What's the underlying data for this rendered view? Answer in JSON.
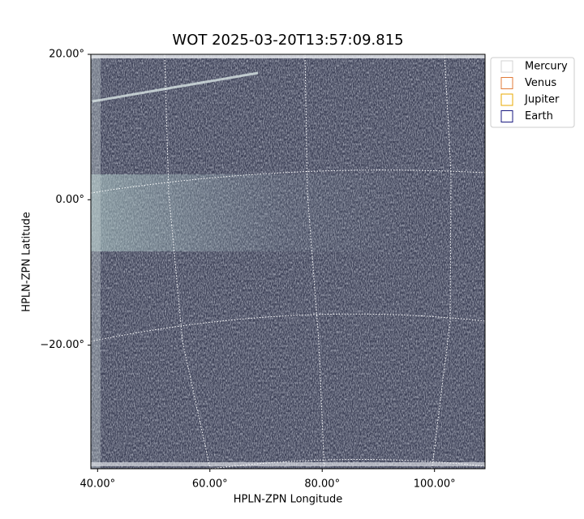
{
  "chart_data": {
    "type": "image",
    "title": "WOT 2025-03-20T13:57:09.815",
    "xlabel": "HPLN-ZPN Longitude",
    "ylabel": "HPLN-ZPN Latitude",
    "xlim": [
      38.8,
      109
    ],
    "ylim": [
      -37,
      20
    ],
    "xticks": [
      {
        "value": 40,
        "label": "40.00°"
      },
      {
        "value": 60,
        "label": "60.00°"
      },
      {
        "value": 80,
        "label": "80.00°"
      },
      {
        "value": 100,
        "label": "100.00°"
      }
    ],
    "yticks": [
      {
        "value": 20,
        "label": "20.00°"
      },
      {
        "value": 0,
        "label": "0.00°"
      },
      {
        "value": -20,
        "label": "−20.00°"
      }
    ],
    "series": [
      {
        "name": "Mercury",
        "color": "#d3d3d3"
      },
      {
        "name": "Venus",
        "color": "#e07b39"
      },
      {
        "name": "Jupiter",
        "color": "#e8a800"
      },
      {
        "name": "Earth",
        "color": "#1a1a80"
      }
    ],
    "grid": true
  }
}
